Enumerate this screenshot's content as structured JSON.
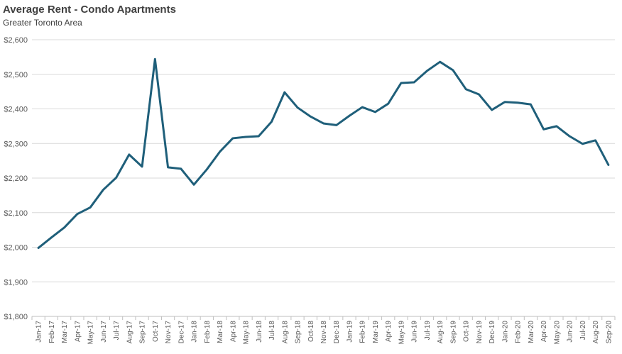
{
  "chart_data": {
    "type": "line",
    "title": "Average Rent - Condo Apartments",
    "subtitle": "Greater Toronto Area",
    "xlabel": "",
    "ylabel": "",
    "ylim": [
      1800,
      2600
    ],
    "yticks": [
      1800,
      1900,
      2000,
      2100,
      2200,
      2300,
      2400,
      2500,
      2600
    ],
    "ytick_labels": [
      "$1,800",
      "$1,900",
      "$2,000",
      "$2,100",
      "$2,200",
      "$2,300",
      "$2,400",
      "$2,500",
      "$2,600"
    ],
    "grid": "horizontal",
    "legend": "none",
    "line_color": "#1f5f7a",
    "grid_color": "#d9d9d9",
    "categories": [
      "Jan-17",
      "Feb-17",
      "Mar-17",
      "Apr-17",
      "May-17",
      "Jun-17",
      "Jul-17",
      "Aug-17",
      "Sep-17",
      "Oct-17",
      "Nov-17",
      "Dec-17",
      "Jan-18",
      "Feb-18",
      "Mar-18",
      "Apr-18",
      "May-18",
      "Jun-18",
      "Jul-18",
      "Aug-18",
      "Sep-18",
      "Oct-18",
      "Nov-18",
      "Dec-18",
      "Jan-19",
      "Feb-19",
      "Mar-19",
      "Apr-19",
      "May-19",
      "Jun-19",
      "Jul-19",
      "Aug-19",
      "Sep-19",
      "Oct-19",
      "Nov-19",
      "Dec-19",
      "Jan-20",
      "Feb-20",
      "Mar-20",
      "Apr-20",
      "May-20",
      "Jun-20",
      "Jul-20",
      "Aug-20",
      "Sep-20"
    ],
    "series": [
      {
        "values": [
          1998,
          2028,
          2057,
          2096,
          2115,
          2166,
          2201,
          2268,
          2233,
          2544,
          2231,
          2227,
          2181,
          2225,
          2276,
          2315,
          2319,
          2321,
          2363,
          2448,
          2404,
          2378,
          2358,
          2353,
          2380,
          2405,
          2391,
          2415,
          2475,
          2477,
          2510,
          2536,
          2512,
          2457,
          2442,
          2397,
          2420,
          2418,
          2413,
          2341,
          2350,
          2321,
          2299,
          2309,
          2238
        ]
      }
    ]
  }
}
